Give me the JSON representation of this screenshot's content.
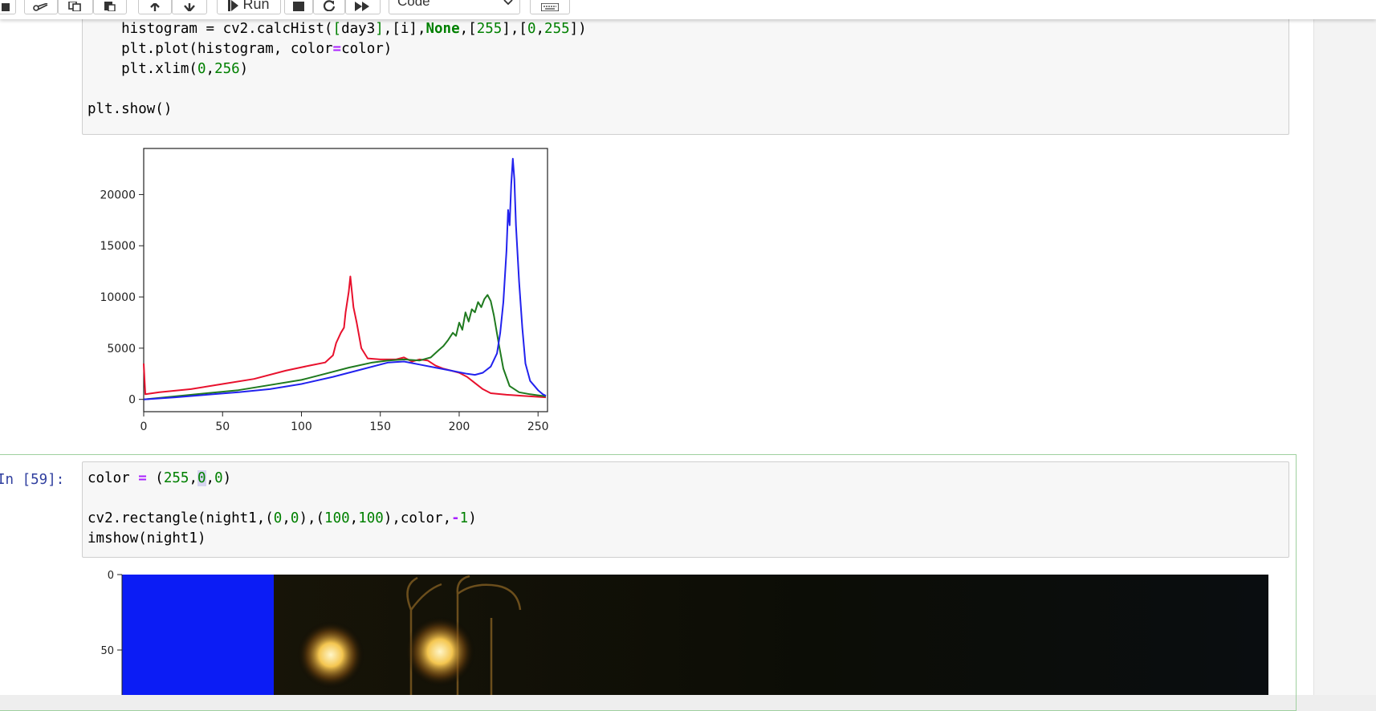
{
  "toolbar": {
    "run_label": "Run",
    "cell_type": "Code"
  },
  "cell1": {
    "code_lines": [
      "    histogram = cv2.calcHist([day3],[i],None,[255],[0,255])",
      "    plt.plot(histogram, color=color)",
      "    plt.xlim(0,256)",
      "",
      "plt.show()"
    ]
  },
  "chart_data": {
    "type": "line",
    "xlim": [
      0,
      256
    ],
    "ylim": [
      -1200,
      24500
    ],
    "x_ticks": [
      "0",
      "50",
      "100",
      "150",
      "200",
      "250"
    ],
    "y_ticks": [
      "0",
      "5000",
      "10000",
      "15000",
      "20000"
    ],
    "grid": false,
    "series": [
      {
        "color": "#e8112d",
        "points": [
          [
            0,
            3500
          ],
          [
            1,
            500
          ],
          [
            10,
            700
          ],
          [
            30,
            1000
          ],
          [
            50,
            1500
          ],
          [
            70,
            2000
          ],
          [
            90,
            2800
          ],
          [
            105,
            3300
          ],
          [
            115,
            3600
          ],
          [
            120,
            4300
          ],
          [
            122,
            5500
          ],
          [
            125,
            6500
          ],
          [
            127,
            7000
          ],
          [
            128,
            8500
          ],
          [
            130,
            10500
          ],
          [
            131,
            12000
          ],
          [
            133,
            9000
          ],
          [
            135,
            7500
          ],
          [
            138,
            5000
          ],
          [
            142,
            4000
          ],
          [
            150,
            3900
          ],
          [
            160,
            3900
          ],
          [
            165,
            4100
          ],
          [
            170,
            3700
          ],
          [
            175,
            3900
          ],
          [
            180,
            3800
          ],
          [
            185,
            3300
          ],
          [
            190,
            3000
          ],
          [
            195,
            2800
          ],
          [
            200,
            2600
          ],
          [
            205,
            2200
          ],
          [
            210,
            1600
          ],
          [
            215,
            1000
          ],
          [
            220,
            600
          ],
          [
            230,
            450
          ],
          [
            240,
            350
          ],
          [
            250,
            250
          ],
          [
            255,
            200
          ]
        ]
      },
      {
        "color": "#1f7a1f",
        "points": [
          [
            0,
            0
          ],
          [
            20,
            300
          ],
          [
            40,
            600
          ],
          [
            60,
            900
          ],
          [
            80,
            1400
          ],
          [
            100,
            1900
          ],
          [
            115,
            2500
          ],
          [
            130,
            3100
          ],
          [
            145,
            3600
          ],
          [
            155,
            3800
          ],
          [
            165,
            3900
          ],
          [
            175,
            3800
          ],
          [
            182,
            4100
          ],
          [
            187,
            4800
          ],
          [
            190,
            5200
          ],
          [
            193,
            5800
          ],
          [
            196,
            6500
          ],
          [
            198,
            6200
          ],
          [
            200,
            7500
          ],
          [
            202,
            6800
          ],
          [
            204,
            8500
          ],
          [
            206,
            7600
          ],
          [
            208,
            8800
          ],
          [
            210,
            8500
          ],
          [
            212,
            9500
          ],
          [
            214,
            9000
          ],
          [
            216,
            9800
          ],
          [
            218,
            10200
          ],
          [
            220,
            9600
          ],
          [
            222,
            8200
          ],
          [
            225,
            5500
          ],
          [
            228,
            3000
          ],
          [
            232,
            1300
          ],
          [
            238,
            700
          ],
          [
            245,
            500
          ],
          [
            250,
            400
          ],
          [
            255,
            300
          ]
        ]
      },
      {
        "color": "#2222ee",
        "points": [
          [
            0,
            0
          ],
          [
            20,
            200
          ],
          [
            40,
            450
          ],
          [
            60,
            700
          ],
          [
            80,
            1000
          ],
          [
            100,
            1500
          ],
          [
            120,
            2200
          ],
          [
            140,
            3000
          ],
          [
            155,
            3600
          ],
          [
            165,
            3700
          ],
          [
            175,
            3400
          ],
          [
            185,
            3100
          ],
          [
            195,
            2800
          ],
          [
            205,
            2500
          ],
          [
            210,
            2400
          ],
          [
            215,
            2600
          ],
          [
            220,
            3200
          ],
          [
            224,
            4500
          ],
          [
            226,
            6500
          ],
          [
            228,
            9500
          ],
          [
            230,
            14500
          ],
          [
            231,
            18500
          ],
          [
            232,
            17000
          ],
          [
            233,
            21000
          ],
          [
            234,
            23500
          ],
          [
            235,
            21500
          ],
          [
            236,
            17000
          ],
          [
            238,
            11500
          ],
          [
            240,
            7000
          ],
          [
            242,
            3500
          ],
          [
            245,
            1800
          ],
          [
            250,
            900
          ],
          [
            253,
            500
          ],
          [
            255,
            350
          ]
        ]
      }
    ]
  },
  "cell2": {
    "prompt": "In [59]:",
    "code_lines": [
      "color = (255,0,0)",
      "",
      "cv2.rectangle(night1,(0,0),(100,100),color,-1)",
      "imshow(night1)"
    ]
  },
  "image_output": {
    "y_ticks": [
      "0",
      "50"
    ],
    "rect_color": "#0b1cf5"
  }
}
